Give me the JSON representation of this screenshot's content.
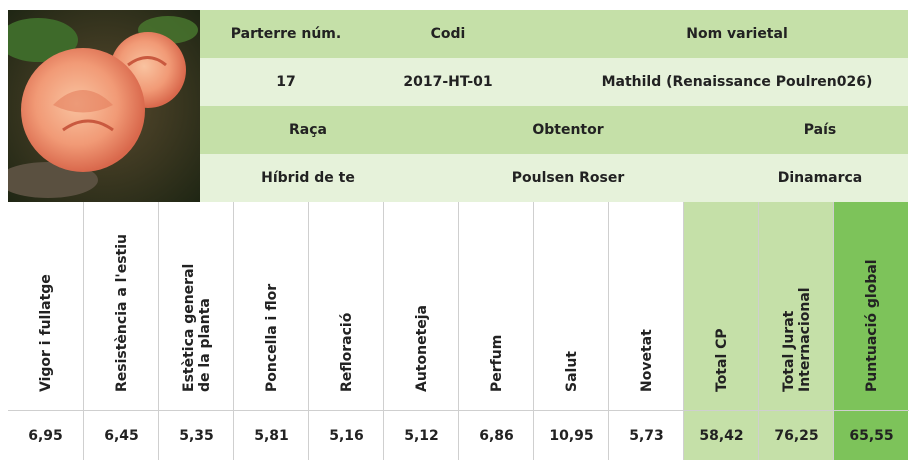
{
  "info": {
    "rows": [
      [
        "Parterre núm.",
        "Codi",
        "Nom varietal"
      ],
      [
        "17",
        "2017-HT-01",
        "Mathild (Renaissance Poulren026)"
      ],
      [
        "Raça",
        "Obtentor",
        "País"
      ],
      [
        "Híbrid de te",
        "Poulsen Roser",
        "Dinamarca"
      ]
    ]
  },
  "scores": {
    "headers": [
      [
        "Vigor i fullatge"
      ],
      [
        "Resistència a l'estiu"
      ],
      [
        "Estètica general",
        "de la planta"
      ],
      [
        "Poncella i flor"
      ],
      [
        "Refloració"
      ],
      [
        "Autoneteja"
      ],
      [
        "Perfum"
      ],
      [
        "Salut"
      ],
      [
        "Novetat"
      ],
      [
        "Total CP"
      ],
      [
        "Total Jurat",
        "Internacional"
      ],
      [
        "Puntuació global"
      ]
    ],
    "values": [
      "6,95",
      "6,45",
      "5,35",
      "5,81",
      "5,16",
      "5,12",
      "6,86",
      "10,95",
      "5,73",
      "58,42",
      "76,25",
      "65,55"
    ]
  }
}
